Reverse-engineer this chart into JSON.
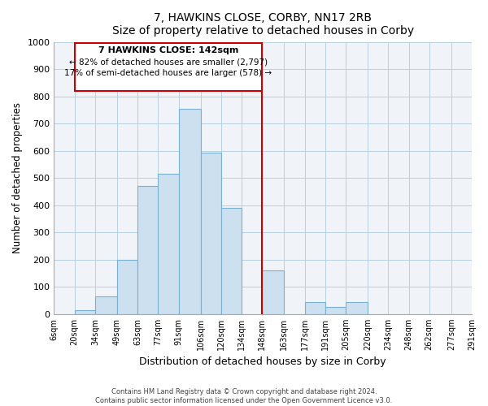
{
  "title": "7, HAWKINS CLOSE, CORBY, NN17 2RB",
  "subtitle": "Size of property relative to detached houses in Corby",
  "xlabel": "Distribution of detached houses by size in Corby",
  "ylabel": "Number of detached properties",
  "bin_edges": [
    6,
    20,
    34,
    49,
    63,
    77,
    91,
    106,
    120,
    134,
    148,
    163,
    177,
    191,
    205,
    220,
    234,
    248,
    262,
    277,
    291
  ],
  "tick_labels": [
    "6sqm",
    "20sqm",
    "34sqm",
    "49sqm",
    "63sqm",
    "77sqm",
    "91sqm",
    "106sqm",
    "120sqm",
    "134sqm",
    "148sqm",
    "163sqm",
    "177sqm",
    "191sqm",
    "205sqm",
    "220sqm",
    "234sqm",
    "248sqm",
    "262sqm",
    "277sqm",
    "291sqm"
  ],
  "bar_heights": [
    0,
    15,
    65,
    200,
    470,
    515,
    755,
    595,
    390,
    0,
    160,
    0,
    45,
    25,
    45,
    0,
    0,
    0,
    0,
    0
  ],
  "bar_color": "#cce0f0",
  "bar_edge_color": "#7ab0d0",
  "vline_value": 148,
  "vline_color": "#cc0000",
  "annotation_title": "7 HAWKINS CLOSE: 142sqm",
  "annotation_line1": "← 82% of detached houses are smaller (2,797)",
  "annotation_line2": "17% of semi-detached houses are larger (578) →",
  "annotation_box_edge": "#cc0000",
  "ylim": [
    0,
    1000
  ],
  "yticks": [
    0,
    100,
    200,
    300,
    400,
    500,
    600,
    700,
    800,
    900,
    1000
  ],
  "footer1": "Contains HM Land Registry data © Crown copyright and database right 2024.",
  "footer2": "Contains public sector information licensed under the Open Government Licence v3.0.",
  "bg_color": "#f0f4f8"
}
